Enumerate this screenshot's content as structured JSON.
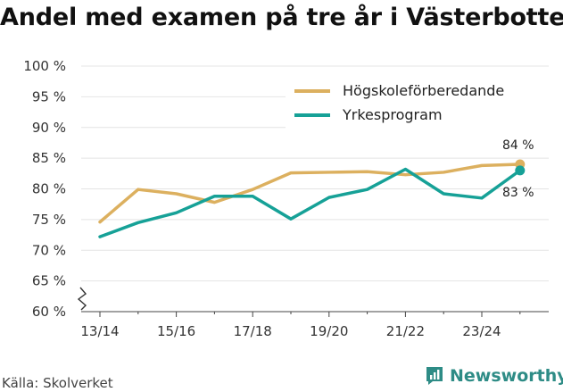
{
  "title": "Andel med examen på tre år i Västerbotten",
  "source": "Källa: Skolverket",
  "brand": "Newsworthy",
  "colors": {
    "hogskole": "#dcb05f",
    "yrke": "#16a197",
    "grid": "#e4e4e4",
    "brand": "#2e8c86"
  },
  "chart_data": {
    "type": "line",
    "title": "Andel med examen på tre år i Västerbotten",
    "x": [
      "13/14",
      "14/15",
      "15/16",
      "16/17",
      "17/18",
      "18/19",
      "19/20",
      "20/21",
      "21/22",
      "22/23",
      "23/24",
      "24/25"
    ],
    "x_tick_labels": [
      "13/14",
      "15/16",
      "17/18",
      "19/20",
      "21/22",
      "23/24"
    ],
    "y_tick_labels": [
      "60 %",
      "65 %",
      "70 %",
      "75 %",
      "80 %",
      "85 %",
      "90 %",
      "95 %",
      "100 %"
    ],
    "ylim": [
      60,
      100
    ],
    "y_axis_break": true,
    "grid": true,
    "legend_position": "top-right",
    "series": [
      {
        "name": "Högskoleförberedande",
        "color": "#dcb05f",
        "values": [
          74.6,
          79.9,
          79.2,
          77.8,
          79.9,
          82.6,
          82.7,
          82.8,
          82.3,
          82.7,
          83.8,
          84.0
        ],
        "end_label": "84 %"
      },
      {
        "name": "Yrkesprogram",
        "color": "#16a197",
        "values": [
          72.2,
          74.5,
          76.1,
          78.8,
          78.8,
          75.1,
          78.6,
          79.9,
          83.2,
          79.2,
          78.5,
          83.0
        ],
        "end_label": "83 %"
      }
    ]
  }
}
